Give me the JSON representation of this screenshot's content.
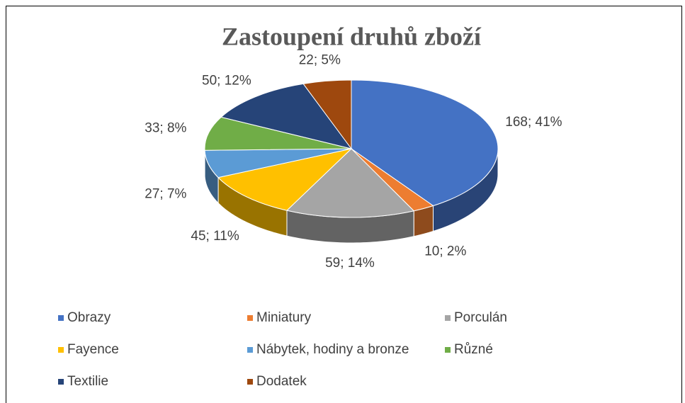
{
  "chart_data": {
    "type": "pie",
    "title": "Zastoupení druhů zboží",
    "categories": [
      "Obrazy",
      "Miniatury",
      "Porculán",
      "Fayence",
      "Nábytek, hodiny a bronze",
      "Různé",
      "Textilie",
      "Dodatek"
    ],
    "values": [
      168,
      10,
      59,
      45,
      27,
      33,
      50,
      22
    ],
    "value_labels": [
      "168; 41%",
      "10; 2%",
      "59; 14%",
      "45; 11%",
      "27; 7%",
      "33; 8%",
      "50; 12%",
      "22; 5%"
    ],
    "colors": [
      "#4472c4",
      "#ed7d31",
      "#a5a5a5",
      "#ffc000",
      "#5b9bd5",
      "#70ad47",
      "#264478",
      "#9e480e"
    ],
    "legend": "bottom"
  }
}
